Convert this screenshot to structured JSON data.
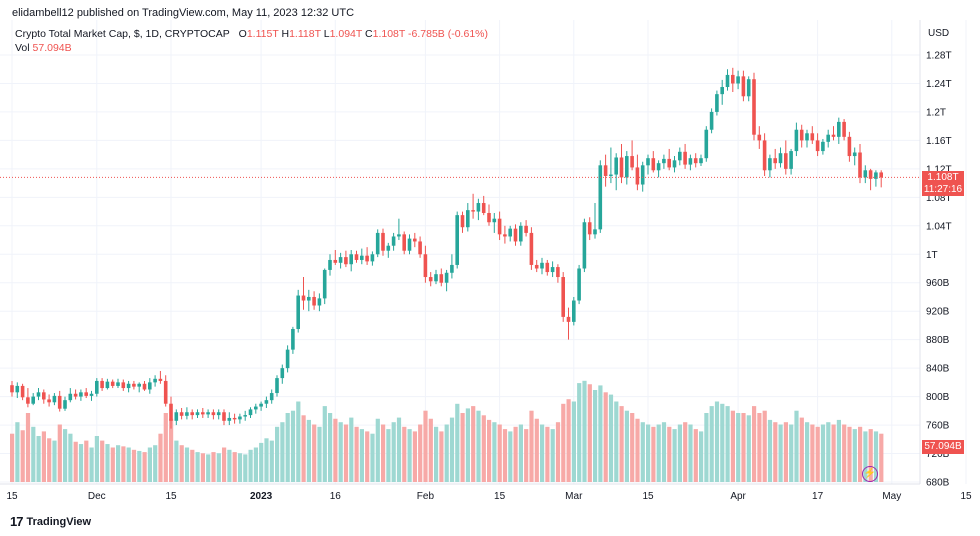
{
  "header": {
    "published_by": "elidambell12 published on TradingView.com, May 11, 2023 12:32 UTC"
  },
  "legend": {
    "symbol": "Crypto Total Market Cap, $, 1D, CRYPTOCAP",
    "open_label": "O",
    "open": "1.115T",
    "high_label": "H",
    "high": "1.118T",
    "low_label": "L",
    "low": "1.094T",
    "close_label": "C",
    "close": "1.108T",
    "change": "-6.785B (-0.61%)",
    "vol_label": "Vol",
    "vol_value": "57.094B"
  },
  "price_axis": {
    "currency": "USD",
    "last_price": "1.108T",
    "countdown": "11:27:16",
    "volume_tag": "57.094B"
  },
  "brand": {
    "name": "TradingView"
  },
  "colors": {
    "up": "#26a69a",
    "down": "#ef5350",
    "up_volume": "#9ed8d2",
    "down_volume": "#f7a9a7",
    "grid": "#f0f3fa"
  },
  "chart_data": {
    "type": "candlestick",
    "title": "Crypto Total Market Cap, $, 1D, CRYPTOCAP",
    "y_axis_ticks": [
      "1.28T",
      "1.24T",
      "1.2T",
      "1.16T",
      "1.12T",
      "1.08T",
      "1.04T",
      "1T",
      "960B",
      "920B",
      "880B",
      "840B",
      "800B",
      "760B",
      "720B",
      "680B"
    ],
    "y_axis_values": [
      1280,
      1240,
      1200,
      1160,
      1120,
      1080,
      1040,
      1000,
      960,
      920,
      880,
      840,
      800,
      760,
      720,
      680
    ],
    "y_units": "billions USD",
    "ylim": [
      668,
      1305
    ],
    "x_axis_ticks": [
      "15",
      "Dec",
      "15",
      "2023",
      "16",
      "Feb",
      "15",
      "Mar",
      "15",
      "Apr",
      "17",
      "May",
      "15"
    ],
    "x_axis_tick_day_index": [
      0,
      16,
      30,
      47,
      61,
      78,
      92,
      106,
      120,
      137,
      152,
      166,
      180
    ],
    "start_date": "2022-11-15",
    "volume_axis": "relative height, 0-1",
    "candles": [
      [
        0,
        816,
        822,
        800,
        806,
        0.42
      ],
      [
        1,
        806,
        820,
        798,
        815,
        0.52
      ],
      [
        2,
        815,
        818,
        795,
        799,
        0.45
      ],
      [
        3,
        799,
        812,
        785,
        790,
        0.6
      ],
      [
        4,
        790,
        805,
        788,
        800,
        0.48
      ],
      [
        5,
        800,
        812,
        795,
        806,
        0.4
      ],
      [
        6,
        806,
        810,
        790,
        796,
        0.44
      ],
      [
        7,
        796,
        803,
        786,
        792,
        0.38
      ],
      [
        8,
        792,
        805,
        788,
        801,
        0.36
      ],
      [
        9,
        801,
        808,
        779,
        783,
        0.5
      ],
      [
        10,
        783,
        800,
        780,
        795,
        0.46
      ],
      [
        11,
        795,
        812,
        792,
        804,
        0.42
      ],
      [
        12,
        804,
        810,
        796,
        800,
        0.35
      ],
      [
        13,
        800,
        810,
        794,
        806,
        0.33
      ],
      [
        14,
        806,
        812,
        798,
        801,
        0.36
      ],
      [
        15,
        801,
        808,
        794,
        804,
        0.3
      ],
      [
        16,
        804,
        826,
        800,
        822,
        0.4
      ],
      [
        17,
        822,
        826,
        808,
        812,
        0.36
      ],
      [
        18,
        812,
        825,
        810,
        821,
        0.33
      ],
      [
        19,
        821,
        824,
        812,
        815,
        0.3
      ],
      [
        20,
        815,
        825,
        812,
        820,
        0.32
      ],
      [
        21,
        820,
        824,
        808,
        812,
        0.31
      ],
      [
        22,
        812,
        822,
        806,
        818,
        0.3
      ],
      [
        23,
        818,
        822,
        810,
        814,
        0.28
      ],
      [
        24,
        814,
        820,
        806,
        818,
        0.27
      ],
      [
        25,
        818,
        822,
        808,
        810,
        0.26
      ],
      [
        26,
        810,
        826,
        804,
        820,
        0.3
      ],
      [
        27,
        820,
        830,
        814,
        825,
        0.32
      ],
      [
        28,
        825,
        836,
        818,
        822,
        0.42
      ],
      [
        29,
        822,
        830,
        786,
        790,
        0.6
      ],
      [
        30,
        790,
        800,
        755,
        766,
        0.55
      ],
      [
        31,
        766,
        782,
        760,
        778,
        0.36
      ],
      [
        32,
        778,
        784,
        768,
        773,
        0.32
      ],
      [
        33,
        773,
        785,
        768,
        778,
        0.3
      ],
      [
        34,
        778,
        782,
        768,
        774,
        0.28
      ],
      [
        35,
        774,
        782,
        770,
        778,
        0.26
      ],
      [
        36,
        778,
        784,
        770,
        775,
        0.25
      ],
      [
        37,
        775,
        782,
        770,
        778,
        0.24
      ],
      [
        38,
        778,
        782,
        768,
        774,
        0.26
      ],
      [
        39,
        774,
        782,
        768,
        778,
        0.25
      ],
      [
        40,
        778,
        782,
        760,
        766,
        0.3
      ],
      [
        41,
        766,
        778,
        760,
        770,
        0.28
      ],
      [
        42,
        770,
        776,
        762,
        768,
        0.26
      ],
      [
        43,
        768,
        776,
        762,
        772,
        0.25
      ],
      [
        44,
        772,
        780,
        766,
        774,
        0.24
      ],
      [
        45,
        774,
        785,
        770,
        782,
        0.28
      ],
      [
        46,
        782,
        790,
        776,
        786,
        0.3
      ],
      [
        47,
        786,
        793,
        780,
        790,
        0.34
      ],
      [
        48,
        790,
        800,
        784,
        795,
        0.38
      ],
      [
        49,
        795,
        810,
        790,
        805,
        0.36
      ],
      [
        50,
        805,
        830,
        800,
        826,
        0.48
      ],
      [
        51,
        826,
        845,
        818,
        840,
        0.52
      ],
      [
        52,
        840,
        872,
        834,
        866,
        0.6
      ],
      [
        53,
        866,
        898,
        860,
        895,
        0.62
      ],
      [
        54,
        895,
        950,
        890,
        942,
        0.7
      ],
      [
        55,
        942,
        968,
        922,
        935,
        0.58
      ],
      [
        56,
        935,
        950,
        920,
        940,
        0.54
      ],
      [
        57,
        940,
        948,
        922,
        928,
        0.5
      ],
      [
        58,
        928,
        945,
        920,
        938,
        0.48
      ],
      [
        59,
        938,
        980,
        930,
        978,
        0.66
      ],
      [
        60,
        978,
        1000,
        970,
        992,
        0.6
      ],
      [
        61,
        992,
        1006,
        985,
        988,
        0.55
      ],
      [
        62,
        988,
        1002,
        980,
        996,
        0.52
      ],
      [
        63,
        996,
        1005,
        982,
        986,
        0.5
      ],
      [
        64,
        986,
        1006,
        976,
        1000,
        0.56
      ],
      [
        65,
        1000,
        1005,
        988,
        992,
        0.48
      ],
      [
        66,
        992,
        1008,
        986,
        998,
        0.46
      ],
      [
        67,
        998,
        1010,
        985,
        990,
        0.44
      ],
      [
        68,
        990,
        1004,
        984,
        1000,
        0.42
      ],
      [
        69,
        1000,
        1035,
        996,
        1030,
        0.55
      ],
      [
        70,
        1030,
        1036,
        998,
        1005,
        0.5
      ],
      [
        71,
        1005,
        1016,
        995,
        1012,
        0.46
      ],
      [
        72,
        1012,
        1030,
        1005,
        1025,
        0.52
      ],
      [
        73,
        1025,
        1050,
        1020,
        1028,
        0.56
      ],
      [
        74,
        1028,
        1032,
        1000,
        1005,
        0.48
      ],
      [
        75,
        1005,
        1028,
        1000,
        1022,
        0.46
      ],
      [
        76,
        1022,
        1030,
        1010,
        1018,
        0.44
      ],
      [
        77,
        1018,
        1025,
        995,
        1000,
        0.5
      ],
      [
        78,
        1000,
        1012,
        960,
        968,
        0.62
      ],
      [
        79,
        968,
        975,
        955,
        962,
        0.55
      ],
      [
        80,
        962,
        978,
        958,
        972,
        0.48
      ],
      [
        81,
        972,
        980,
        955,
        960,
        0.44
      ],
      [
        82,
        960,
        978,
        948,
        974,
        0.5
      ],
      [
        83,
        974,
        1000,
        966,
        985,
        0.56
      ],
      [
        84,
        985,
        1060,
        980,
        1055,
        0.68
      ],
      [
        85,
        1055,
        1060,
        1030,
        1038,
        0.6
      ],
      [
        86,
        1038,
        1072,
        1032,
        1062,
        0.64
      ],
      [
        87,
        1062,
        1085,
        1050,
        1060,
        0.66
      ],
      [
        88,
        1060,
        1078,
        1048,
        1072,
        0.62
      ],
      [
        89,
        1072,
        1082,
        1055,
        1058,
        0.58
      ],
      [
        90,
        1058,
        1070,
        1040,
        1045,
        0.54
      ],
      [
        91,
        1045,
        1058,
        1030,
        1050,
        0.52
      ],
      [
        92,
        1050,
        1060,
        1020,
        1028,
        0.5
      ],
      [
        93,
        1028,
        1040,
        1015,
        1025,
        0.46
      ],
      [
        94,
        1025,
        1040,
        1018,
        1036,
        0.44
      ],
      [
        95,
        1036,
        1042,
        1012,
        1018,
        0.48
      ],
      [
        96,
        1018,
        1045,
        1012,
        1040,
        0.5
      ],
      [
        97,
        1040,
        1048,
        1025,
        1030,
        0.46
      ],
      [
        98,
        1030,
        1038,
        978,
        985,
        0.62
      ],
      [
        99,
        985,
        992,
        975,
        980,
        0.55
      ],
      [
        100,
        980,
        995,
        972,
        988,
        0.5
      ],
      [
        101,
        988,
        992,
        970,
        975,
        0.48
      ],
      [
        102,
        975,
        990,
        968,
        982,
        0.46
      ],
      [
        103,
        982,
        986,
        960,
        968,
        0.52
      ],
      [
        104,
        968,
        975,
        905,
        912,
        0.68
      ],
      [
        105,
        912,
        925,
        880,
        905,
        0.72
      ],
      [
        106,
        905,
        940,
        900,
        935,
        0.7
      ],
      [
        107,
        935,
        985,
        930,
        980,
        0.86
      ],
      [
        108,
        980,
        1050,
        975,
        1045,
        0.88
      ],
      [
        109,
        1045,
        1052,
        1020,
        1028,
        0.85
      ],
      [
        110,
        1028,
        1072,
        1022,
        1035,
        0.8
      ],
      [
        111,
        1035,
        1132,
        1030,
        1125,
        0.84
      ],
      [
        112,
        1125,
        1140,
        1095,
        1110,
        0.78
      ],
      [
        113,
        1110,
        1150,
        1100,
        1112,
        0.76
      ],
      [
        114,
        1112,
        1142,
        1090,
        1136,
        0.7
      ],
      [
        115,
        1136,
        1155,
        1100,
        1108,
        0.66
      ],
      [
        116,
        1108,
        1145,
        1098,
        1138,
        0.62
      ],
      [
        117,
        1138,
        1160,
        1118,
        1122,
        0.6
      ],
      [
        118,
        1122,
        1140,
        1090,
        1098,
        0.55
      ],
      [
        119,
        1098,
        1130,
        1088,
        1125,
        0.52
      ],
      [
        120,
        1125,
        1140,
        1112,
        1135,
        0.5
      ],
      [
        121,
        1135,
        1145,
        1115,
        1118,
        0.48
      ],
      [
        122,
        1118,
        1132,
        1108,
        1128,
        0.5
      ],
      [
        123,
        1128,
        1140,
        1120,
        1134,
        0.52
      ],
      [
        124,
        1134,
        1148,
        1118,
        1122,
        0.48
      ],
      [
        125,
        1122,
        1138,
        1115,
        1132,
        0.46
      ],
      [
        126,
        1132,
        1150,
        1125,
        1144,
        0.5
      ],
      [
        127,
        1144,
        1155,
        1120,
        1126,
        0.52
      ],
      [
        128,
        1126,
        1140,
        1118,
        1135,
        0.5
      ],
      [
        129,
        1135,
        1142,
        1122,
        1128,
        0.46
      ],
      [
        130,
        1128,
        1140,
        1124,
        1135,
        0.44
      ],
      [
        131,
        1135,
        1180,
        1130,
        1175,
        0.6
      ],
      [
        132,
        1175,
        1205,
        1170,
        1200,
        0.66
      ],
      [
        133,
        1200,
        1230,
        1195,
        1225,
        0.7
      ],
      [
        134,
        1225,
        1245,
        1210,
        1235,
        0.68
      ],
      [
        135,
        1235,
        1260,
        1230,
        1252,
        0.66
      ],
      [
        136,
        1252,
        1262,
        1228,
        1240,
        0.62
      ],
      [
        137,
        1240,
        1258,
        1232,
        1250,
        0.6
      ],
      [
        138,
        1250,
        1258,
        1215,
        1222,
        0.6
      ],
      [
        139,
        1222,
        1250,
        1215,
        1246,
        0.58
      ],
      [
        140,
        1246,
        1255,
        1160,
        1168,
        0.66
      ],
      [
        141,
        1168,
        1180,
        1148,
        1160,
        0.6
      ],
      [
        142,
        1160,
        1170,
        1110,
        1118,
        0.62
      ],
      [
        143,
        1118,
        1140,
        1108,
        1135,
        0.54
      ],
      [
        144,
        1135,
        1148,
        1120,
        1128,
        0.52
      ],
      [
        145,
        1128,
        1150,
        1122,
        1142,
        0.5
      ],
      [
        146,
        1142,
        1160,
        1112,
        1120,
        0.52
      ],
      [
        147,
        1120,
        1148,
        1112,
        1145,
        0.5
      ],
      [
        148,
        1145,
        1185,
        1138,
        1175,
        0.62
      ],
      [
        149,
        1175,
        1182,
        1150,
        1160,
        0.56
      ],
      [
        150,
        1160,
        1175,
        1150,
        1170,
        0.52
      ],
      [
        151,
        1170,
        1180,
        1155,
        1160,
        0.5
      ],
      [
        152,
        1160,
        1170,
        1138,
        1145,
        0.48
      ],
      [
        153,
        1145,
        1162,
        1140,
        1158,
        0.5
      ],
      [
        154,
        1158,
        1175,
        1150,
        1168,
        0.52
      ],
      [
        155,
        1168,
        1180,
        1160,
        1165,
        0.5
      ],
      [
        156,
        1165,
        1192,
        1155,
        1186,
        0.54
      ],
      [
        157,
        1186,
        1190,
        1160,
        1165,
        0.5
      ],
      [
        158,
        1165,
        1172,
        1130,
        1138,
        0.48
      ],
      [
        159,
        1138,
        1150,
        1125,
        1143,
        0.46
      ],
      [
        160,
        1143,
        1155,
        1100,
        1108,
        0.48
      ],
      [
        161,
        1108,
        1125,
        1100,
        1118,
        0.44
      ],
      [
        162,
        1118,
        1120,
        1090,
        1106,
        0.46
      ],
      [
        163,
        1106,
        1118,
        1095,
        1115,
        0.44
      ],
      [
        164,
        1115,
        1118,
        1094,
        1108,
        0.42
      ]
    ]
  }
}
